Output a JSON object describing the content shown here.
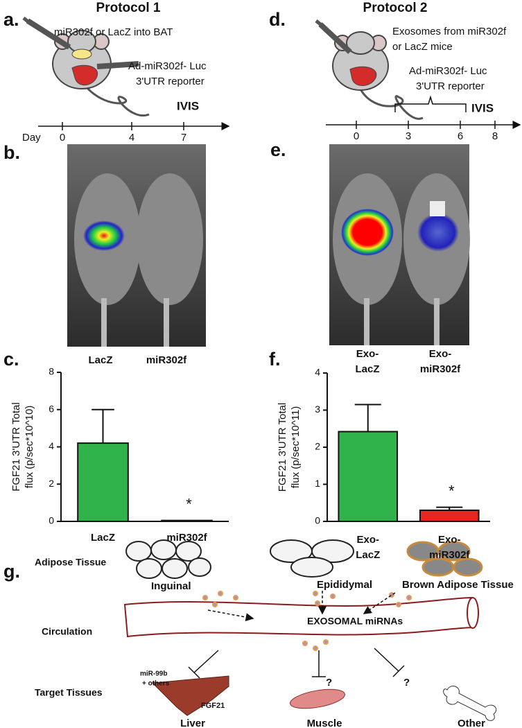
{
  "panel_labels": [
    "a.",
    "b.",
    "c.",
    "d.",
    "e.",
    "f.",
    "g."
  ],
  "protocol1": {
    "title": "Protocol 1",
    "injection": "miR302f or LacZ into BAT",
    "reporter_line1": "Ad-miR302f- Luc",
    "reporter_line2": "3'UTR reporter",
    "readout": "IVIS",
    "timeline_label": "Day",
    "days": [
      0,
      4,
      7
    ]
  },
  "protocol2": {
    "title": "Protocol 2",
    "injection_line1": "Exosomes from miR302f",
    "injection_line2": "or LacZ mice",
    "reporter_line1": "Ad-miR302f- Luc",
    "reporter_line2": "3'UTR reporter",
    "readout": "IVIS",
    "days": [
      0,
      3,
      6,
      8
    ]
  },
  "image_b_labels": [
    "LacZ",
    "miR302f"
  ],
  "image_e_labels": [
    "Exo- LacZ",
    "Exo- miR302f"
  ],
  "chart_data": [
    {
      "type": "bar",
      "y_label": [
        "FGF21 3'UTR Total",
        "flux (p/sec*10^10)"
      ],
      "categories": [
        "LacZ",
        "miR302f"
      ],
      "values": [
        4.2,
        0.05
      ],
      "errors": [
        1.8,
        0
      ],
      "colors": [
        "#2fb34a",
        "#2fb34a"
      ],
      "significance": [
        null,
        "*"
      ],
      "ylim": [
        0,
        8
      ],
      "yticks": [
        0,
        2,
        4,
        6,
        8
      ]
    },
    {
      "type": "bar",
      "y_label": [
        "FGF21 3'UTR Total",
        "flux (p/sec*10^11)"
      ],
      "categories": [
        "Exo- LacZ",
        "Exo- miR302f"
      ],
      "values": [
        2.42,
        0.3
      ],
      "errors": [
        0.73,
        0.08
      ],
      "colors": [
        "#2fb34a",
        "#e8251f"
      ],
      "significance": [
        null,
        "*"
      ],
      "ylim": [
        0,
        4
      ],
      "yticks": [
        0,
        1,
        2,
        3,
        4
      ]
    }
  ],
  "diagram": {
    "adipose_tissue": "Adipose Tissue",
    "inguinal": "Inguinal",
    "epididymal": "Epididymal",
    "brown": "Brown  Adipose Tissue",
    "exosomal": "EXOSOMAL miRNAs",
    "circulation": "Circulation",
    "mirna_line1": "miR-99b",
    "mirna_line2": "+ others",
    "target_tissues": "Target Tissues",
    "fgf21": "FGF21",
    "liver": "Liver",
    "muscle": "Muscle",
    "other": "Other",
    "question": "?"
  }
}
